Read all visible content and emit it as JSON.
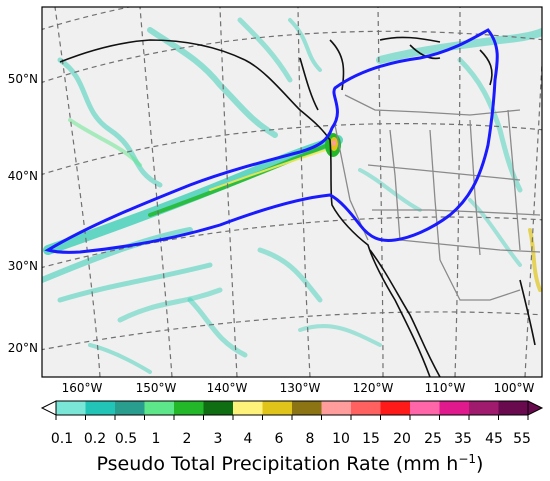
{
  "map": {
    "lat_labels": [
      "50°N",
      "40°N",
      "30°N",
      "20°N"
    ],
    "lon_labels": [
      "160°W",
      "150°W",
      "140°W",
      "130°W",
      "120°W",
      "110°W",
      "100°W"
    ],
    "extent": {
      "lon_min": -167,
      "lon_max": -95,
      "lat_min": 17,
      "lat_max": 57
    },
    "background_color": "#f0f0f0",
    "outline_color": "#1a1aff",
    "overlay": "precipitation-rate"
  },
  "colorbar": {
    "tick_labels": [
      "0.1",
      "0.2",
      "0.5",
      "1",
      "2",
      "3",
      "4",
      "6",
      "8",
      "10",
      "15",
      "20",
      "25",
      "35",
      "45",
      "55"
    ],
    "colors": [
      "#7ae6d8",
      "#22c4b8",
      "#2a9e8e",
      "#5ee68a",
      "#22b82a",
      "#0f6e12",
      "#fff27a",
      "#e0c41a",
      "#8c7414",
      "#ff9c9c",
      "#ff6060",
      "#ff1a1a",
      "#ff66aa",
      "#e01a8c",
      "#a01a6e",
      "#6a0a4e"
    ],
    "title": "Pseudo Total Precipitation Rate (mm h",
    "title_sup": "−1",
    "title_close": ")"
  }
}
